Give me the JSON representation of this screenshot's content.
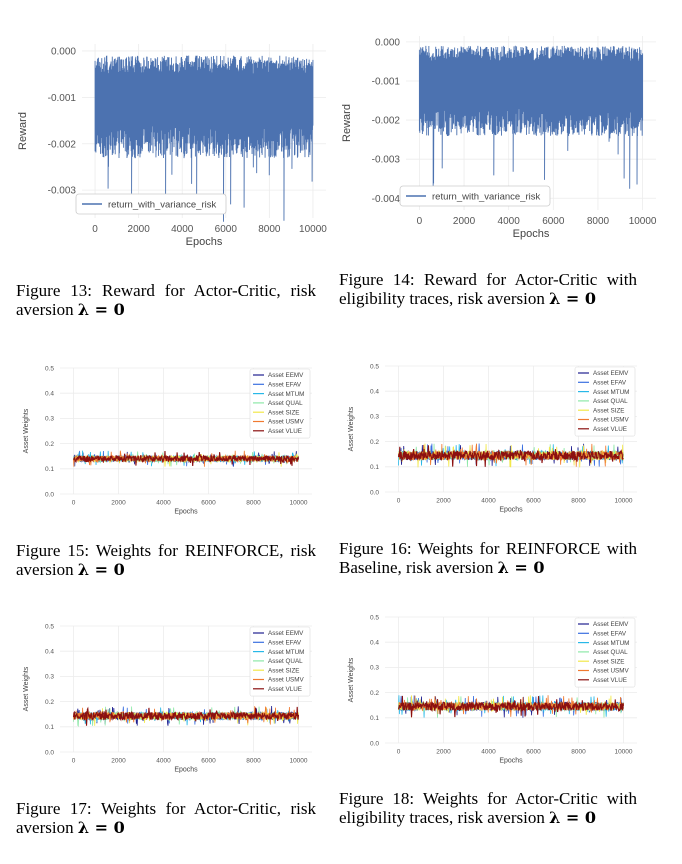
{
  "figures": [
    {
      "id": "fig13",
      "caption": {
        "label": "Figure 13:",
        "text": "Reward for Actor-Critic, risk aversion",
        "lambda": "λ = 0"
      },
      "chart_data": {
        "type": "line",
        "xlabel": "Epochs",
        "ylabel": "Reward",
        "xlim": [
          -600,
          10600
        ],
        "ylim": [
          -0.0036,
          0.00015
        ],
        "xticks": [
          0,
          2000,
          4000,
          6000,
          8000,
          10000
        ],
        "yticks": [
          0.0,
          -0.001,
          -0.002,
          -0.003
        ],
        "ytick_labels": [
          "0.000",
          "-0.001",
          "-0.002",
          "-0.003"
        ],
        "grid": true,
        "legend": "bottom-left",
        "series": [
          {
            "name": "return_with_variance_risk",
            "color": "#4c72b0",
            "band": {
              "upper": -0.0003,
              "lower": -0.0021,
              "min": -0.0037,
              "max": -0.0001
            }
          }
        ]
      }
    },
    {
      "id": "fig14",
      "caption": {
        "label": "Figure 14:",
        "text": "Reward for Actor-Critic with eligibility traces, risk aversion",
        "lambda": "λ = 0"
      },
      "chart_data": {
        "type": "line",
        "xlabel": "Epochs",
        "ylabel": "Reward",
        "xlim": [
          -600,
          10600
        ],
        "ylim": [
          -0.0043,
          0.00015
        ],
        "xticks": [
          0,
          2000,
          4000,
          6000,
          8000,
          10000
        ],
        "yticks": [
          0.0,
          -0.001,
          -0.002,
          -0.003,
          -0.004
        ],
        "ytick_labels": [
          "0.000",
          "-0.001",
          "-0.002",
          "-0.003",
          "-0.004"
        ],
        "grid": true,
        "legend": "bottom-left",
        "series": [
          {
            "name": "return_with_variance_risk",
            "color": "#4c72b0",
            "band": {
              "upper": -0.0003,
              "lower": -0.0022,
              "min": -0.0038,
              "max": -0.0001
            }
          }
        ]
      }
    },
    {
      "id": "fig15",
      "caption": {
        "label": "Figure 15:",
        "text": "Weights for REINFORCE, risk aversion",
        "lambda": "λ = 0"
      },
      "chart_data": {
        "type": "line",
        "xlabel": "Epochs",
        "ylabel": "Asset Weights",
        "xlim": [
          -600,
          10600
        ],
        "ylim": [
          0.0,
          0.5
        ],
        "xticks": [
          0,
          2000,
          4000,
          6000,
          8000,
          10000
        ],
        "yticks": [
          0.0,
          0.1,
          0.2,
          0.3,
          0.4,
          0.5
        ],
        "ytick_labels": [
          "0.0",
          "0.1",
          "0.2",
          "0.3",
          "0.4",
          "0.5"
        ],
        "grid": true,
        "legend": "top-right",
        "series": [
          {
            "name": "Asset EEMV",
            "color": "#1f1f8f",
            "center": 0.14,
            "spread": 0.02
          },
          {
            "name": "Asset EFAV",
            "color": "#3a6fe0",
            "center": 0.14,
            "spread": 0.02
          },
          {
            "name": "Asset MTUM",
            "color": "#28b8e8",
            "center": 0.14,
            "spread": 0.02
          },
          {
            "name": "Asset QUAL",
            "color": "#8ee8a8",
            "center": 0.14,
            "spread": 0.02
          },
          {
            "name": "Asset SIZE",
            "color": "#f2e84a",
            "center": 0.14,
            "spread": 0.02
          },
          {
            "name": "Asset USMV",
            "color": "#f07a30",
            "center": 0.14,
            "spread": 0.02
          },
          {
            "name": "Asset VLUE",
            "color": "#8b1010",
            "center": 0.14,
            "spread": 0.02
          }
        ]
      }
    },
    {
      "id": "fig16",
      "caption": {
        "label": "Figure 16:",
        "text": "Weights for REINFORCE with Baseline, risk aversion",
        "lambda": "λ = 0"
      },
      "chart_data": {
        "type": "line",
        "xlabel": "Epochs",
        "ylabel": "Asset Weights",
        "xlim": [
          -600,
          10600
        ],
        "ylim": [
          0.0,
          0.5
        ],
        "xticks": [
          0,
          2000,
          4000,
          6000,
          8000,
          10000
        ],
        "yticks": [
          0.0,
          0.1,
          0.2,
          0.3,
          0.4,
          0.5
        ],
        "ytick_labels": [
          "0.0",
          "0.1",
          "0.2",
          "0.3",
          "0.4",
          "0.5"
        ],
        "grid": true,
        "legend": "top-right",
        "series": [
          {
            "name": "Asset EEMV",
            "color": "#1f1f8f",
            "center": 0.145,
            "spread": 0.03
          },
          {
            "name": "Asset EFAV",
            "color": "#3a6fe0",
            "center": 0.145,
            "spread": 0.03
          },
          {
            "name": "Asset MTUM",
            "color": "#28b8e8",
            "center": 0.145,
            "spread": 0.03
          },
          {
            "name": "Asset QUAL",
            "color": "#8ee8a8",
            "center": 0.145,
            "spread": 0.03
          },
          {
            "name": "Asset SIZE",
            "color": "#f2e84a",
            "center": 0.145,
            "spread": 0.03
          },
          {
            "name": "Asset USMV",
            "color": "#f07a30",
            "center": 0.145,
            "spread": 0.03
          },
          {
            "name": "Asset VLUE",
            "color": "#8b1010",
            "center": 0.145,
            "spread": 0.03
          }
        ]
      }
    },
    {
      "id": "fig17",
      "caption": {
        "label": "Figure 17:",
        "text": "Weights for Actor-Critic, risk aversion",
        "lambda": "λ = 0"
      },
      "chart_data": {
        "type": "line",
        "xlabel": "Epochs",
        "ylabel": "Asset Weights",
        "xlim": [
          -600,
          10600
        ],
        "ylim": [
          0.0,
          0.5
        ],
        "xticks": [
          0,
          2000,
          4000,
          6000,
          8000,
          10000
        ],
        "yticks": [
          0.0,
          0.1,
          0.2,
          0.3,
          0.4,
          0.5
        ],
        "ytick_labels": [
          "0.0",
          "0.1",
          "0.2",
          "0.3",
          "0.4",
          "0.5"
        ],
        "grid": true,
        "legend": "top-right",
        "series": [
          {
            "name": "Asset EEMV",
            "color": "#1f1f8f",
            "center": 0.143,
            "spread": 0.025
          },
          {
            "name": "Asset EFAV",
            "color": "#3a6fe0",
            "center": 0.143,
            "spread": 0.025
          },
          {
            "name": "Asset MTUM",
            "color": "#28b8e8",
            "center": 0.143,
            "spread": 0.025
          },
          {
            "name": "Asset QUAL",
            "color": "#8ee8a8",
            "center": 0.143,
            "spread": 0.025
          },
          {
            "name": "Asset SIZE",
            "color": "#f2e84a",
            "center": 0.143,
            "spread": 0.025
          },
          {
            "name": "Asset USMV",
            "color": "#f07a30",
            "center": 0.143,
            "spread": 0.025
          },
          {
            "name": "Asset VLUE",
            "color": "#8b1010",
            "center": 0.143,
            "spread": 0.025
          }
        ]
      }
    },
    {
      "id": "fig18",
      "caption": {
        "label": "Figure 18:",
        "text": "Weights for Actor-Critic with eligibility traces, risk aversion",
        "lambda": "λ = 0"
      },
      "chart_data": {
        "type": "line",
        "xlabel": "Epochs",
        "ylabel": "Asset Weights",
        "xlim": [
          -600,
          10600
        ],
        "ylim": [
          0.0,
          0.5
        ],
        "xticks": [
          0,
          2000,
          4000,
          6000,
          8000,
          10000
        ],
        "yticks": [
          0.0,
          0.1,
          0.2,
          0.3,
          0.4,
          0.5
        ],
        "ytick_labels": [
          "0.0",
          "0.1",
          "0.2",
          "0.3",
          "0.4",
          "0.5"
        ],
        "grid": true,
        "legend": "top-right",
        "series": [
          {
            "name": "Asset EEMV",
            "color": "#1f1f8f",
            "center": 0.145,
            "spread": 0.028
          },
          {
            "name": "Asset EFAV",
            "color": "#3a6fe0",
            "center": 0.145,
            "spread": 0.028
          },
          {
            "name": "Asset MTUM",
            "color": "#28b8e8",
            "center": 0.145,
            "spread": 0.028
          },
          {
            "name": "Asset QUAL",
            "color": "#8ee8a8",
            "center": 0.145,
            "spread": 0.028
          },
          {
            "name": "Asset SIZE",
            "color": "#f2e84a",
            "center": 0.145,
            "spread": 0.028
          },
          {
            "name": "Asset USMV",
            "color": "#f07a30",
            "center": 0.145,
            "spread": 0.028
          },
          {
            "name": "Asset VLUE",
            "color": "#8b1010",
            "center": 0.145,
            "spread": 0.028
          }
        ]
      }
    }
  ]
}
